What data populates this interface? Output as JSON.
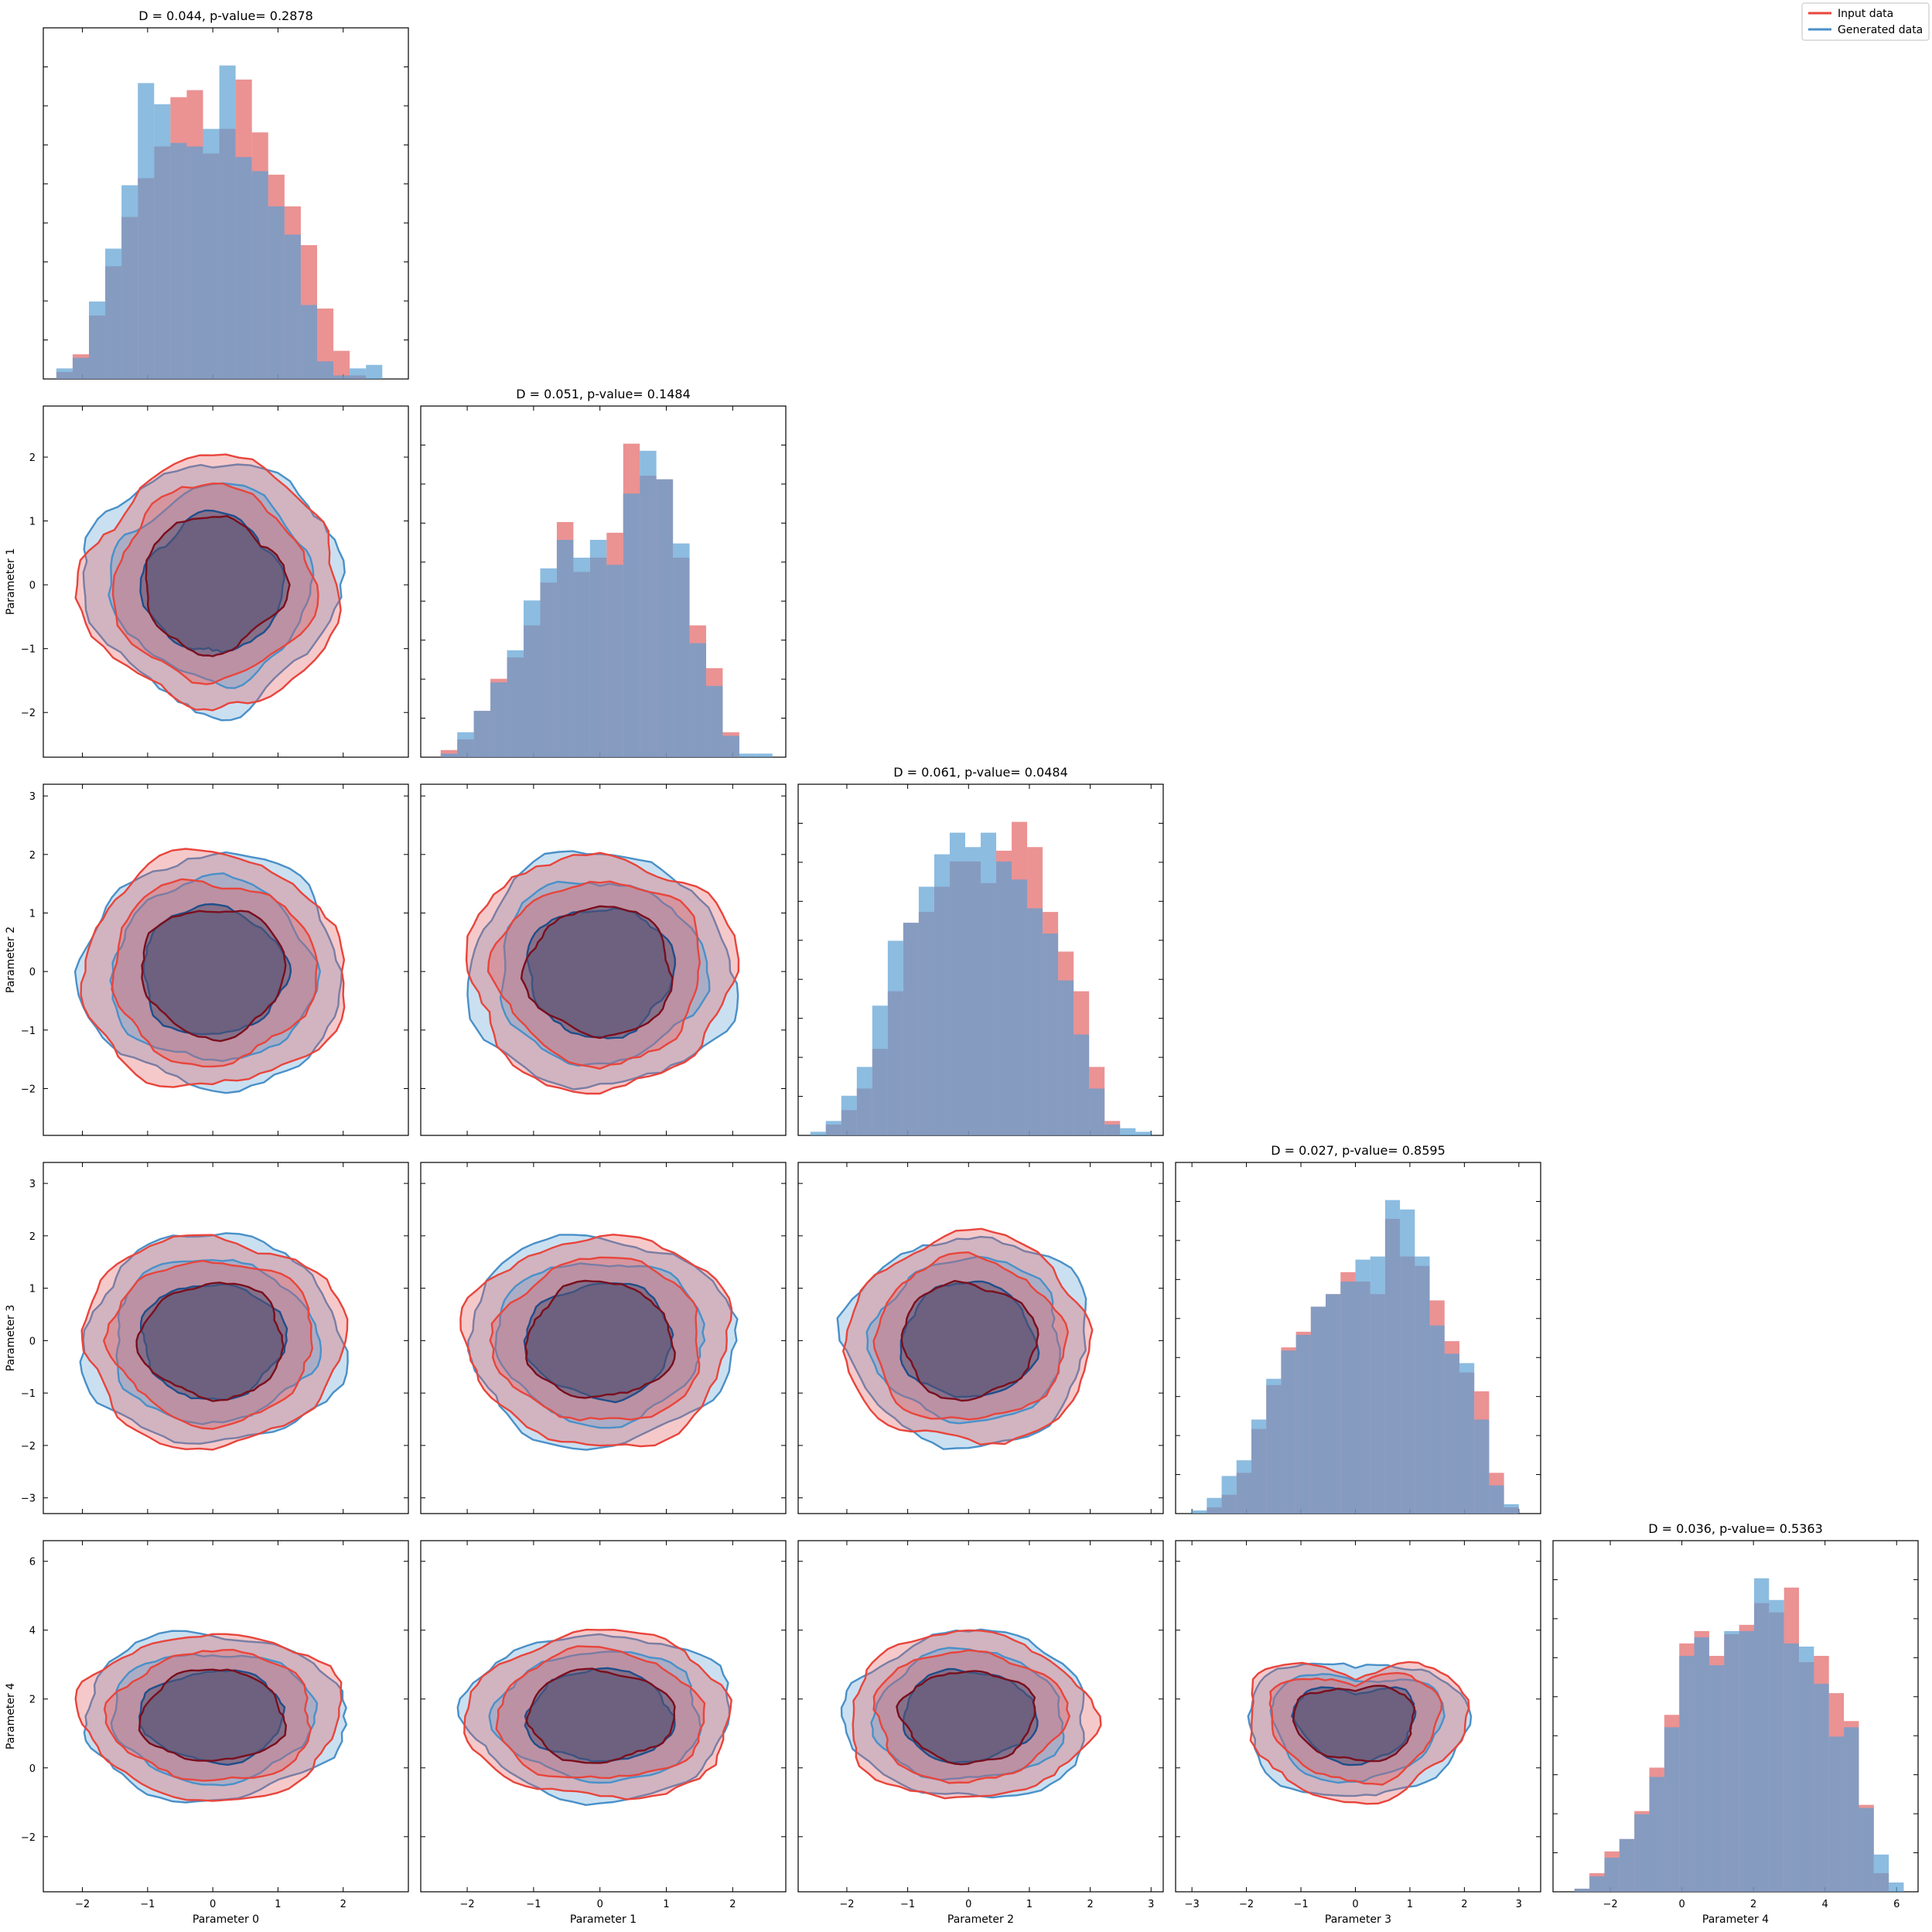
{
  "colors": {
    "input": "#e15759",
    "input_line": "#e8453c",
    "generated": "#5b9fd3",
    "generated_line": "#4a90c8",
    "overlap": "#8a87a3",
    "core_overlap": "#5a5577"
  },
  "legend": {
    "items": [
      {
        "label": "Input data",
        "color": "#e8453c"
      },
      {
        "label": "Generated data",
        "color": "#4a90c8"
      }
    ],
    "placement": "top-right"
  },
  "chart_data": {
    "type": "corner",
    "parameters": [
      {
        "name": "Parameter 0",
        "xlim": [
          -2.6,
          3.0
        ],
        "ticks": [
          -2,
          -1,
          0,
          1,
          2
        ]
      },
      {
        "name": "Parameter 1",
        "xlim": [
          -2.7,
          2.8
        ],
        "ticks": [
          -2,
          -1,
          0,
          1,
          2
        ]
      },
      {
        "name": "Parameter 2",
        "xlim": [
          -2.8,
          3.2
        ],
        "ticks": [
          -2,
          -1,
          0,
          1,
          2,
          3
        ]
      },
      {
        "name": "Parameter 3",
        "xlim": [
          -3.3,
          3.4
        ],
        "ticks": [
          -3,
          -2,
          -1,
          0,
          1,
          2,
          3
        ]
      },
      {
        "name": "Parameter 4",
        "xlim": [
          -3.6,
          6.6
        ],
        "ticks": [
          -2,
          0,
          2,
          4,
          6
        ]
      }
    ],
    "diagonal_titles": [
      "D = 0.044, p-value= 0.2878",
      "D = 0.051, p-value= 0.1484",
      "D = 0.061, p-value= 0.0484",
      "D = 0.027, p-value= 0.8595",
      "D = 0.036, p-value= 0.5363"
    ],
    "histograms": [
      {
        "bins": [
          -2.4,
          2.6,
          20
        ],
        "input": [
          2,
          7,
          18,
          32,
          46,
          57,
          66,
          80,
          82,
          64,
          71,
          85,
          70,
          58,
          49,
          38,
          20,
          8,
          1,
          0
        ],
        "generated": [
          3,
          6,
          22,
          37,
          55,
          84,
          78,
          67,
          66,
          71,
          89,
          63,
          59,
          49,
          41,
          21,
          5,
          1,
          3,
          4
        ]
      },
      {
        "bins": [
          -2.4,
          2.6,
          20
        ],
        "input": [
          2,
          5,
          13,
          22,
          28,
          37,
          49,
          66,
          52,
          56,
          63,
          88,
          79,
          78,
          56,
          37,
          25,
          7,
          0,
          0
        ],
        "generated": [
          1,
          7,
          13,
          21,
          30,
          44,
          53,
          61,
          56,
          61,
          54,
          74,
          86,
          78,
          60,
          32,
          20,
          6,
          1,
          1
        ]
      },
      {
        "bins": [
          -2.6,
          3.0,
          22
        ],
        "input": [
          0,
          3,
          7,
          13,
          24,
          40,
          59,
          62,
          69,
          76,
          76,
          70,
          79,
          87,
          80,
          62,
          51,
          40,
          19,
          4,
          0,
          0
        ],
        "generated": [
          1,
          4,
          11,
          19,
          36,
          54,
          59,
          69,
          78,
          84,
          80,
          84,
          76,
          71,
          63,
          56,
          43,
          28,
          13,
          3,
          2,
          1
        ]
      },
      {
        "bins": [
          -3.0,
          3.0,
          22
        ],
        "input": [
          0,
          2,
          6,
          13,
          27,
          41,
          53,
          58,
          66,
          70,
          77,
          74,
          70,
          94,
          82,
          79,
          68,
          55,
          45,
          39,
          13,
          2
        ],
        "generated": [
          1,
          5,
          12,
          17,
          30,
          43,
          52,
          57,
          66,
          70,
          74,
          81,
          82,
          100,
          97,
          82,
          60,
          51,
          48,
          30,
          9,
          3
        ]
      },
      {
        "bins": [
          -3.0,
          6.2,
          22
        ],
        "input": [
          1,
          6,
          13,
          17,
          26,
          40,
          57,
          80,
          84,
          76,
          83,
          86,
          93,
          90,
          98,
          74,
          76,
          64,
          55,
          28,
          6,
          0
        ],
        "generated": [
          1,
          5,
          11,
          17,
          25,
          37,
          53,
          76,
          82,
          73,
          84,
          84,
          101,
          94,
          80,
          79,
          67,
          50,
          53,
          27,
          12,
          3
        ]
      }
    ],
    "contours": {
      "description": "pairwise density contours at three levels for Input data and Generated data",
      "levels": 3
    }
  }
}
